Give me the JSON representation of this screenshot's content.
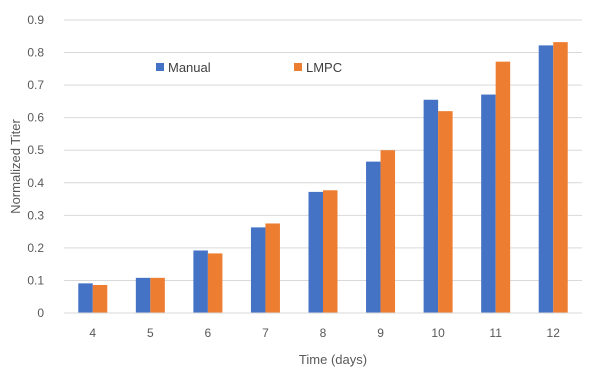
{
  "chart_data": {
    "type": "bar",
    "title": "",
    "xlabel": "Time (days)",
    "ylabel": "Normalized Titer",
    "categories": [
      "4",
      "5",
      "6",
      "7",
      "8",
      "9",
      "10",
      "11",
      "12"
    ],
    "series": [
      {
        "name": "Manual",
        "color": "#4472C4",
        "values": [
          0.091,
          0.108,
          0.192,
          0.263,
          0.372,
          0.465,
          0.655,
          0.671,
          0.822
        ]
      },
      {
        "name": "LMPC",
        "color": "#ED7D31",
        "values": [
          0.086,
          0.108,
          0.183,
          0.275,
          0.377,
          0.5,
          0.62,
          0.772,
          0.832
        ]
      }
    ],
    "ylim": [
      0,
      0.9
    ],
    "yticks": [
      "0",
      "0.1",
      "0.2",
      "0.3",
      "0.4",
      "0.5",
      "0.6",
      "0.7",
      "0.8",
      "0.9"
    ],
    "grid": true,
    "legend": "top-left"
  }
}
